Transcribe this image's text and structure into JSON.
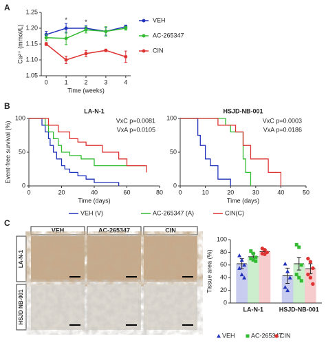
{
  "panel_labels": [
    "A",
    "B",
    "C"
  ],
  "images": {
    "columns": [
      "VEH",
      "AC-265347",
      "CIN"
    ],
    "rows": [
      "LA-N-1",
      "HSJD NB-001"
    ]
  },
  "chart_data": [
    {
      "type": "line",
      "ylabel": "Ca²⁺ (mmol/L)",
      "xlabel": "Time (weeks)",
      "x": [
        0,
        1,
        2,
        3,
        4
      ],
      "xlim": [
        -0.25,
        4.25
      ],
      "xticks": [
        0,
        1,
        2,
        3,
        4
      ],
      "ylim": [
        1.05,
        1.25
      ],
      "yticks": [
        1.05,
        {
          "value": 1.1,
          "label": "1.10"
        },
        1.15,
        {
          "value": 1.2,
          "label": "1.20"
        },
        1.25
      ],
      "annotations": [
        {
          "text": "*",
          "x": 1,
          "y": 1.225
        },
        {
          "text": "*",
          "x": 2,
          "y": 1.218
        }
      ],
      "series": [
        {
          "name": "VEH",
          "color": "#2233bb",
          "values": [
            1.18,
            1.2,
            1.2,
            1.19,
            1.205
          ],
          "errors": [
            0.01,
            0.015,
            0.008,
            0.012,
            0.005
          ]
        },
        {
          "name": "AC-265347",
          "color": "#33bb33",
          "values": [
            1.17,
            1.168,
            1.195,
            1.19,
            1.2
          ],
          "errors": [
            0.01,
            0.02,
            0.01,
            0.015,
            0.006
          ]
        },
        {
          "name": "CIN",
          "color": "#dd3333",
          "values": [
            1.15,
            1.1,
            1.12,
            1.13,
            1.11
          ],
          "errors": [
            0.005,
            0.012,
            0.01,
            0.004,
            0.018
          ]
        }
      ]
    },
    {
      "type": "step",
      "title": "LA-N-1",
      "ylabel": "Event-free survival (%)",
      "xlabel": "Time (days)",
      "annotations": [
        "VxC p=0.0081",
        "VxA p=0.0105"
      ],
      "xlim": [
        0,
        80
      ],
      "xticks": [
        0,
        20,
        40,
        60,
        80
      ],
      "ylim": [
        0,
        100
      ],
      "yticks": [
        0,
        50,
        100
      ],
      "series": [
        {
          "name": "VEH (V)",
          "color": "#2233bb",
          "x": [
            0,
            8,
            10,
            12,
            13,
            15,
            17,
            20,
            22,
            25,
            30,
            35,
            40,
            55
          ],
          "values": [
            100,
            90,
            80,
            70,
            60,
            50,
            40,
            30,
            25,
            20,
            15,
            10,
            5,
            0
          ]
        },
        {
          "name": "AC-265347 (A)",
          "color": "#33bb33",
          "x": [
            0,
            10,
            12,
            15,
            18,
            20,
            25,
            32,
            40,
            72
          ],
          "values": [
            100,
            90,
            80,
            70,
            60,
            50,
            45,
            40,
            30,
            30
          ]
        },
        {
          "name": "CIN(C)",
          "color": "#dd3333",
          "x": [
            0,
            12,
            18,
            25,
            30,
            35,
            45,
            55,
            60,
            70,
            72
          ],
          "values": [
            100,
            90,
            80,
            70,
            65,
            60,
            50,
            40,
            30,
            30,
            20
          ]
        }
      ]
    },
    {
      "type": "step",
      "title": "HSJD-NB-001",
      "xlabel": "Time (days)",
      "annotations": [
        "VxC p=0.0003",
        "VxA p=0.0186"
      ],
      "xlim": [
        0,
        50
      ],
      "xticks": [
        0,
        10,
        20,
        30,
        40,
        50
      ],
      "ylim": [
        0,
        100
      ],
      "yticks": [
        0,
        50,
        100
      ],
      "series": [
        {
          "color": "#2233bb",
          "x": [
            0,
            7,
            8,
            10,
            12,
            15,
            20
          ],
          "values": [
            100,
            75,
            60,
            40,
            30,
            10,
            0
          ]
        },
        {
          "color": "#33bb33",
          "x": [
            0,
            18,
            20,
            25,
            26,
            28
          ],
          "values": [
            100,
            90,
            80,
            40,
            20,
            0
          ]
        },
        {
          "color": "#dd3333",
          "x": [
            0,
            15,
            22,
            25,
            28,
            35,
            40
          ],
          "values": [
            100,
            90,
            80,
            60,
            40,
            20,
            0
          ]
        }
      ]
    },
    {
      "type": "bar",
      "ylabel": "Tissue area (%)",
      "categories": [
        "LA-N-1",
        "HSJD-NB-001"
      ],
      "ylim": [
        0,
        100
      ],
      "yticks": [
        0,
        20,
        40,
        60,
        80,
        100
      ],
      "series": [
        {
          "name": "VEH",
          "color": "#2233bb",
          "marker": "triangle",
          "values": [
            62,
            43
          ],
          "errors": [
            8,
            12
          ],
          "points": [
            [
              75,
              68,
              60,
              55,
              45,
              40
            ],
            [
              62,
              50,
              40,
              25,
              20
            ]
          ]
        },
        {
          "name": "AC-265347",
          "color": "#33bb33",
          "marker": "square",
          "values": [
            73,
            62
          ],
          "errors": [
            5,
            10
          ],
          "points": [
            [
              82,
              78,
              72,
              70,
              68,
              66
            ],
            [
              92,
              88,
              60,
              45,
              40,
              35
            ]
          ]
        },
        {
          "name": "CIN",
          "color": "#dd3333",
          "marker": "circle",
          "values": [
            81,
            54
          ],
          "errors": [
            3,
            8
          ],
          "points": [
            [
              86,
              84,
              80,
              78,
              77
            ],
            [
              70,
              65,
              55,
              45,
              40,
              30
            ]
          ]
        }
      ]
    }
  ]
}
